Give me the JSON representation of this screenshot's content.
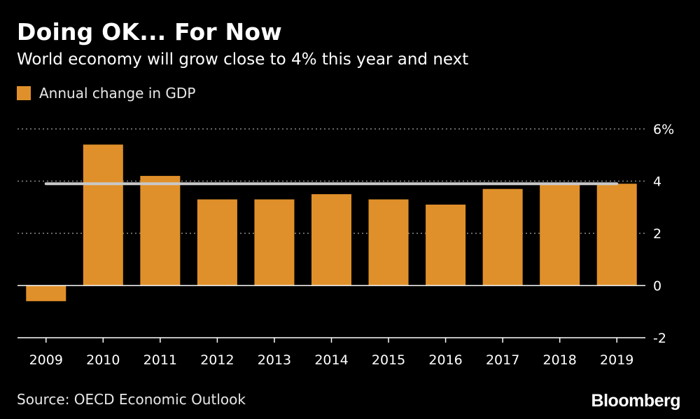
{
  "chart_data": {
    "type": "bar",
    "title": "Doing OK... For Now",
    "subtitle": "World economy will grow close to 4% this year and next",
    "categories": [
      "2009",
      "2010",
      "2011",
      "2012",
      "2013",
      "2014",
      "2015",
      "2016",
      "2017",
      "2018",
      "2019"
    ],
    "series": [
      {
        "name": "Annual change in GDP",
        "values": [
          -0.6,
          5.4,
          4.2,
          3.3,
          3.3,
          3.5,
          3.3,
          3.1,
          3.7,
          3.9,
          3.9
        ]
      }
    ],
    "reference_line": {
      "value": 3.9,
      "from": "2009",
      "to": "2019"
    },
    "ylim": [
      -2,
      6
    ],
    "yticks": [
      -2,
      0,
      2,
      4,
      6
    ],
    "ytick_labels": [
      "-2",
      "0",
      "2",
      "4",
      "6%"
    ],
    "gridlines": [
      2,
      4,
      6
    ],
    "xlabel": "",
    "ylabel": "",
    "legend_position": "top-left",
    "source": "Source: OECD Economic Outlook",
    "brand": "Bloomberg"
  },
  "colors": {
    "background": "#000000",
    "bar": "#e0902a",
    "reference_line": "#c8c8c8",
    "grid": "#8a8a8a",
    "axis": "#ffffff",
    "text": "#ffffff"
  }
}
